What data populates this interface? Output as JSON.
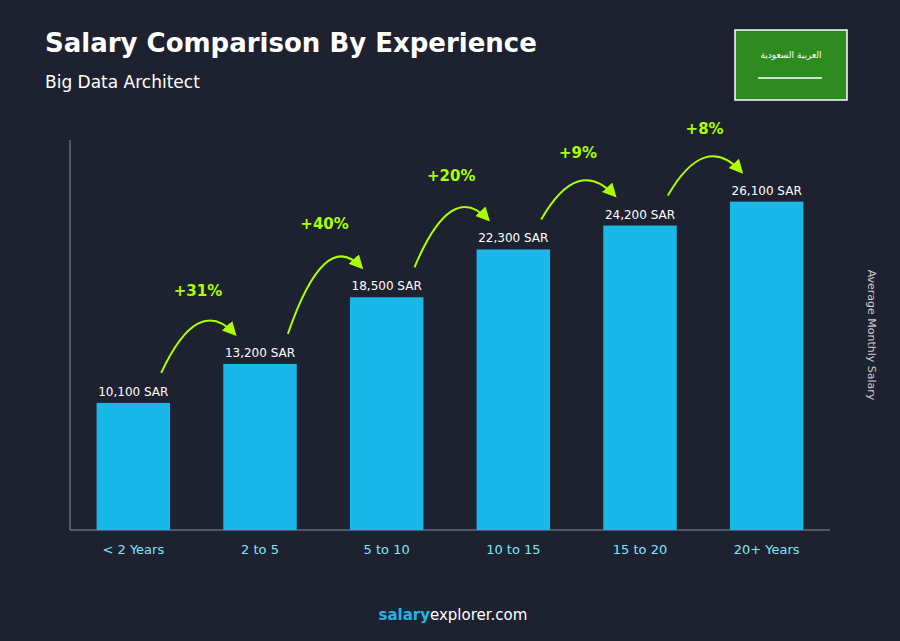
{
  "chart_data": {
    "type": "bar",
    "title": "Salary Comparison By Experience",
    "subtitle": "Big Data Architect",
    "ylabel": "Average Monthly Salary",
    "categories": [
      "< 2 Years",
      "2 to 5",
      "5 to 10",
      "10 to 15",
      "15 to 20",
      "20+ Years"
    ],
    "values": [
      10100,
      13200,
      18500,
      22300,
      24200,
      26100
    ],
    "value_labels": [
      "10,100 SAR",
      "13,200 SAR",
      "18,500 SAR",
      "22,300 SAR",
      "24,200 SAR",
      "26,100 SAR"
    ],
    "annotations": [
      "+31%",
      "+40%",
      "+20%",
      "+9%",
      "+8%"
    ],
    "footer": [
      "salary",
      "explorer.com"
    ],
    "flag_text": "العربية السعودية",
    "color": "#1ab8e8",
    "ylim": [
      0,
      31000
    ],
    "data_labels": true,
    "tick_labels": "x"
  }
}
